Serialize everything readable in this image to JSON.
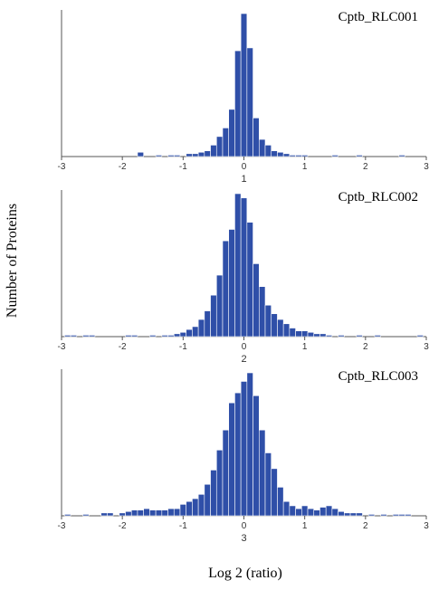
{
  "chart_data": [
    {
      "type": "bar",
      "title": "Cptb_RLC001",
      "panel_label": "1",
      "xlim": [
        -3,
        3
      ],
      "x_ticks": [
        "-3",
        "-2",
        "-1",
        "0",
        "1",
        "2",
        "3"
      ],
      "bin_width": 0.1,
      "bins": [
        {
          "x": -1.7,
          "value": 3
        },
        {
          "x": -1.4,
          "value": 1
        },
        {
          "x": -1.2,
          "value": 1
        },
        {
          "x": -1.1,
          "value": 1
        },
        {
          "x": -0.9,
          "value": 2
        },
        {
          "x": -0.8,
          "value": 2
        },
        {
          "x": -0.7,
          "value": 3
        },
        {
          "x": -0.6,
          "value": 4
        },
        {
          "x": -0.5,
          "value": 8
        },
        {
          "x": -0.4,
          "value": 14
        },
        {
          "x": -0.3,
          "value": 20
        },
        {
          "x": -0.2,
          "value": 33
        },
        {
          "x": -0.1,
          "value": 74
        },
        {
          "x": 0.0,
          "value": 100
        },
        {
          "x": 0.1,
          "value": 76
        },
        {
          "x": 0.2,
          "value": 27
        },
        {
          "x": 0.3,
          "value": 12
        },
        {
          "x": 0.4,
          "value": 8
        },
        {
          "x": 0.5,
          "value": 4
        },
        {
          "x": 0.6,
          "value": 3
        },
        {
          "x": 0.7,
          "value": 2
        },
        {
          "x": 0.8,
          "value": 1
        },
        {
          "x": 0.9,
          "value": 1
        },
        {
          "x": 1.0,
          "value": 1
        },
        {
          "x": 1.5,
          "value": 1
        },
        {
          "x": 1.9,
          "value": 1
        },
        {
          "x": 2.6,
          "value": 1
        }
      ]
    },
    {
      "type": "bar",
      "title": "Cptb_RLC002",
      "panel_label": "2",
      "xlim": [
        -3,
        3
      ],
      "x_ticks": [
        "-3",
        "-2",
        "-1",
        "0",
        "1",
        "2",
        "3"
      ],
      "bin_width": 0.1,
      "bins": [
        {
          "x": -2.9,
          "value": 1
        },
        {
          "x": -2.8,
          "value": 1
        },
        {
          "x": -2.6,
          "value": 1
        },
        {
          "x": -2.5,
          "value": 1
        },
        {
          "x": -1.9,
          "value": 1
        },
        {
          "x": -1.8,
          "value": 1
        },
        {
          "x": -1.5,
          "value": 1
        },
        {
          "x": -1.3,
          "value": 1
        },
        {
          "x": -1.2,
          "value": 1
        },
        {
          "x": -1.1,
          "value": 2
        },
        {
          "x": -1.0,
          "value": 3
        },
        {
          "x": -0.9,
          "value": 5
        },
        {
          "x": -0.8,
          "value": 7
        },
        {
          "x": -0.7,
          "value": 12
        },
        {
          "x": -0.6,
          "value": 18
        },
        {
          "x": -0.5,
          "value": 29
        },
        {
          "x": -0.4,
          "value": 43
        },
        {
          "x": -0.3,
          "value": 67
        },
        {
          "x": -0.2,
          "value": 75
        },
        {
          "x": -0.1,
          "value": 100
        },
        {
          "x": 0.0,
          "value": 97
        },
        {
          "x": 0.1,
          "value": 80
        },
        {
          "x": 0.2,
          "value": 51
        },
        {
          "x": 0.3,
          "value": 35
        },
        {
          "x": 0.4,
          "value": 22
        },
        {
          "x": 0.5,
          "value": 16
        },
        {
          "x": 0.6,
          "value": 12
        },
        {
          "x": 0.7,
          "value": 9
        },
        {
          "x": 0.8,
          "value": 6
        },
        {
          "x": 0.9,
          "value": 4
        },
        {
          "x": 1.0,
          "value": 4
        },
        {
          "x": 1.1,
          "value": 3
        },
        {
          "x": 1.2,
          "value": 2
        },
        {
          "x": 1.3,
          "value": 2
        },
        {
          "x": 1.4,
          "value": 1
        },
        {
          "x": 1.6,
          "value": 1
        },
        {
          "x": 1.9,
          "value": 1
        },
        {
          "x": 2.2,
          "value": 1
        },
        {
          "x": 2.9,
          "value": 1
        }
      ]
    },
    {
      "type": "bar",
      "title": "Cptb_RLC003",
      "panel_label": "3",
      "xlim": [
        -3,
        3
      ],
      "x_ticks": [
        "-3",
        "-2",
        "-1",
        "0",
        "1",
        "2",
        "3"
      ],
      "bin_width": 0.1,
      "bins": [
        {
          "x": -2.9,
          "value": 1
        },
        {
          "x": -2.6,
          "value": 1
        },
        {
          "x": -2.3,
          "value": 2
        },
        {
          "x": -2.2,
          "value": 2
        },
        {
          "x": -2.0,
          "value": 2
        },
        {
          "x": -1.9,
          "value": 3
        },
        {
          "x": -1.8,
          "value": 4
        },
        {
          "x": -1.7,
          "value": 4
        },
        {
          "x": -1.6,
          "value": 5
        },
        {
          "x": -1.5,
          "value": 4
        },
        {
          "x": -1.4,
          "value": 4
        },
        {
          "x": -1.3,
          "value": 4
        },
        {
          "x": -1.2,
          "value": 5
        },
        {
          "x": -1.1,
          "value": 5
        },
        {
          "x": -1.0,
          "value": 8
        },
        {
          "x": -0.9,
          "value": 10
        },
        {
          "x": -0.8,
          "value": 12
        },
        {
          "x": -0.7,
          "value": 15
        },
        {
          "x": -0.6,
          "value": 22
        },
        {
          "x": -0.5,
          "value": 32
        },
        {
          "x": -0.4,
          "value": 46
        },
        {
          "x": -0.3,
          "value": 60
        },
        {
          "x": -0.2,
          "value": 79
        },
        {
          "x": -0.1,
          "value": 86
        },
        {
          "x": 0.0,
          "value": 94
        },
        {
          "x": 0.1,
          "value": 100
        },
        {
          "x": 0.2,
          "value": 84
        },
        {
          "x": 0.3,
          "value": 60
        },
        {
          "x": 0.4,
          "value": 44
        },
        {
          "x": 0.5,
          "value": 33
        },
        {
          "x": 0.6,
          "value": 20
        },
        {
          "x": 0.7,
          "value": 10
        },
        {
          "x": 0.8,
          "value": 7
        },
        {
          "x": 0.9,
          "value": 5
        },
        {
          "x": 1.0,
          "value": 7
        },
        {
          "x": 1.1,
          "value": 5
        },
        {
          "x": 1.2,
          "value": 4
        },
        {
          "x": 1.3,
          "value": 6
        },
        {
          "x": 1.4,
          "value": 7
        },
        {
          "x": 1.5,
          "value": 5
        },
        {
          "x": 1.6,
          "value": 3
        },
        {
          "x": 1.7,
          "value": 2
        },
        {
          "x": 1.8,
          "value": 2
        },
        {
          "x": 1.9,
          "value": 2
        },
        {
          "x": 2.1,
          "value": 1
        },
        {
          "x": 2.3,
          "value": 1
        },
        {
          "x": 2.5,
          "value": 1
        },
        {
          "x": 2.6,
          "value": 1
        },
        {
          "x": 2.7,
          "value": 1
        }
      ]
    }
  ],
  "axis_labels": {
    "x": "Log 2 (ratio)",
    "y": "Number of Proteins"
  },
  "colors": {
    "bar_fill": "#2f4fa8",
    "bar_edge": "#ffffff",
    "axis": "#555555"
  }
}
